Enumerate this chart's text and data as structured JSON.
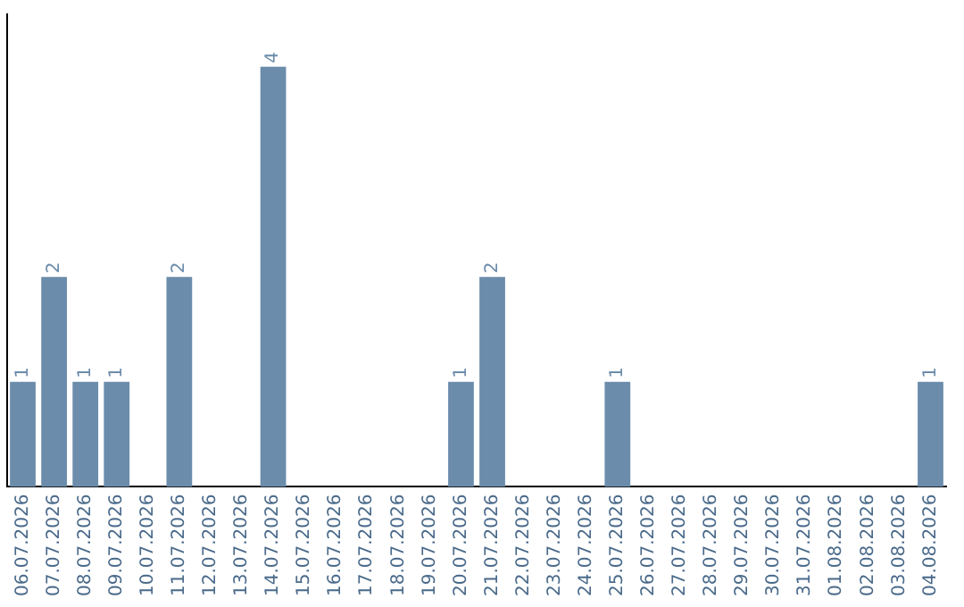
{
  "chart_data": {
    "type": "bar",
    "categories": [
      "06.07.2026",
      "07.07.2026",
      "08.07.2026",
      "09.07.2026",
      "10.07.2026",
      "11.07.2026",
      "12.07.2026",
      "13.07.2026",
      "14.07.2026",
      "15.07.2026",
      "16.07.2026",
      "17.07.2026",
      "18.07.2026",
      "19.07.2026",
      "20.07.2026",
      "21.07.2026",
      "22.07.2026",
      "23.07.2026",
      "24.07.2026",
      "25.07.2026",
      "26.07.2026",
      "27.07.2026",
      "28.07.2026",
      "29.07.2026",
      "30.07.2026",
      "31.07.2026",
      "01.08.2026",
      "02.08.2026",
      "03.08.2026",
      "04.08.2026"
    ],
    "values": [
      1,
      2,
      1,
      1,
      0,
      2,
      0,
      0,
      4,
      0,
      0,
      0,
      0,
      0,
      1,
      2,
      0,
      0,
      0,
      1,
      0,
      0,
      0,
      0,
      0,
      0,
      0,
      0,
      0,
      1
    ],
    "value_labels": [
      "1",
      "2",
      "1",
      "1",
      null,
      "2",
      null,
      null,
      "4",
      null,
      null,
      null,
      null,
      null,
      "1",
      "2",
      null,
      null,
      null,
      "1",
      null,
      null,
      null,
      null,
      null,
      null,
      null,
      null,
      null,
      "1"
    ],
    "color": "#6b8cab",
    "grid": false,
    "legend": false,
    "tick_labels": "x"
  }
}
